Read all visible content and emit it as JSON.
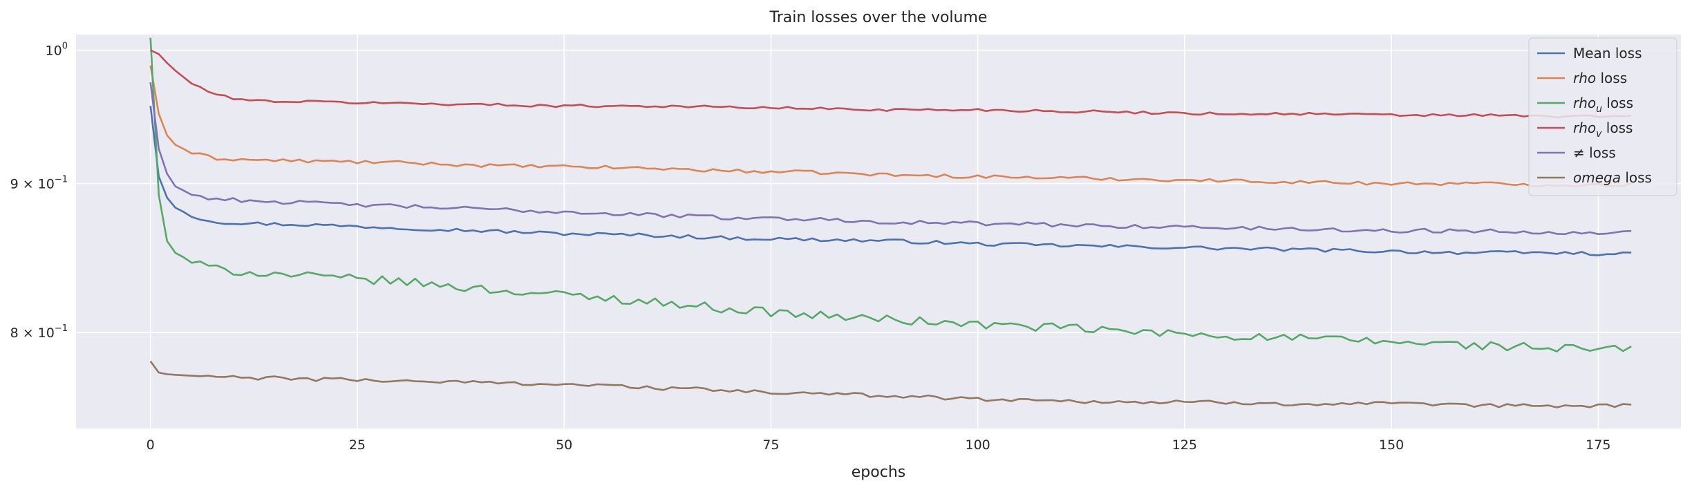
{
  "chart_data": {
    "type": "line",
    "title": "Train losses over the volume",
    "xlabel": "epochs",
    "ylabel": "",
    "y_scale": "log",
    "xlim": [
      -9,
      185
    ],
    "ylim": [
      0.7415,
      1.0125
    ],
    "x_ticks": [
      0,
      25,
      50,
      75,
      100,
      125,
      150,
      175
    ],
    "x_tick_labels": [
      "0",
      "25",
      "50",
      "75",
      "100",
      "125",
      "150",
      "175"
    ],
    "y_ticks": [
      1.0,
      0.9,
      0.8
    ],
    "y_tick_labels": [
      {
        "base": "10",
        "exp": "0"
      },
      {
        "base": "9 × 10",
        "exp": "−1"
      },
      {
        "base": "8 × 10",
        "exp": "−1"
      }
    ],
    "grid": true,
    "legend_position": "top-right",
    "background": "#eaeaf2",
    "series": [
      {
        "name": "Mean loss",
        "legend": {
          "italic": "",
          "sub": "",
          "rest": "Mean loss"
        },
        "color": "#4c72b0",
        "keypoints": [
          [
            0,
            0.957
          ],
          [
            1,
            0.905
          ],
          [
            2,
            0.89
          ],
          [
            3,
            0.883
          ],
          [
            5,
            0.877
          ],
          [
            8,
            0.873
          ],
          [
            12,
            0.872
          ],
          [
            20,
            0.871
          ],
          [
            30,
            0.869
          ],
          [
            40,
            0.867
          ],
          [
            50,
            0.865
          ],
          [
            60,
            0.864
          ],
          [
            70,
            0.862
          ],
          [
            80,
            0.861
          ],
          [
            90,
            0.86
          ],
          [
            100,
            0.858
          ],
          [
            110,
            0.857
          ],
          [
            120,
            0.856
          ],
          [
            130,
            0.855
          ],
          [
            140,
            0.854
          ],
          [
            150,
            0.853
          ],
          [
            160,
            0.852
          ],
          [
            170,
            0.852
          ],
          [
            179,
            0.851
          ]
        ],
        "noise": 0.0012
      },
      {
        "name": "rho loss",
        "legend": {
          "italic": "rho",
          "sub": "",
          "rest": " loss"
        },
        "color": "#dd8452",
        "keypoints": [
          [
            0,
            0.988
          ],
          [
            1,
            0.951
          ],
          [
            2,
            0.935
          ],
          [
            3,
            0.928
          ],
          [
            5,
            0.922
          ],
          [
            8,
            0.918
          ],
          [
            12,
            0.917
          ],
          [
            20,
            0.916
          ],
          [
            30,
            0.915
          ],
          [
            40,
            0.913
          ],
          [
            50,
            0.912
          ],
          [
            60,
            0.911
          ],
          [
            70,
            0.909
          ],
          [
            80,
            0.908
          ],
          [
            90,
            0.906
          ],
          [
            100,
            0.905
          ],
          [
            110,
            0.904
          ],
          [
            120,
            0.903
          ],
          [
            130,
            0.902
          ],
          [
            140,
            0.901
          ],
          [
            150,
            0.9
          ],
          [
            160,
            0.9
          ],
          [
            170,
            0.899
          ],
          [
            179,
            0.899
          ]
        ],
        "noise": 0.0012
      },
      {
        "name": "rho_u loss",
        "legend": {
          "italic": "rho",
          "sub": "u",
          "rest": " loss"
        },
        "color": "#55a868",
        "keypoints": [
          [
            0,
            1.01
          ],
          [
            1,
            0.892
          ],
          [
            2,
            0.86
          ],
          [
            3,
            0.852
          ],
          [
            5,
            0.846
          ],
          [
            8,
            0.841
          ],
          [
            12,
            0.839
          ],
          [
            20,
            0.836
          ],
          [
            30,
            0.833
          ],
          [
            40,
            0.828
          ],
          [
            50,
            0.824
          ],
          [
            60,
            0.82
          ],
          [
            70,
            0.815
          ],
          [
            80,
            0.811
          ],
          [
            90,
            0.808
          ],
          [
            100,
            0.805
          ],
          [
            110,
            0.803
          ],
          [
            120,
            0.8
          ],
          [
            130,
            0.798
          ],
          [
            140,
            0.796
          ],
          [
            150,
            0.794
          ],
          [
            160,
            0.792
          ],
          [
            170,
            0.79
          ],
          [
            179,
            0.789
          ]
        ],
        "noise": 0.0028
      },
      {
        "name": "rho_v loss",
        "legend": {
          "italic": "rho",
          "sub": "v",
          "rest": " loss"
        },
        "color": "#c44e52",
        "keypoints": [
          [
            0,
            1.0
          ],
          [
            1,
            0.997
          ],
          [
            2,
            0.99
          ],
          [
            3,
            0.984
          ],
          [
            5,
            0.974
          ],
          [
            8,
            0.965
          ],
          [
            12,
            0.961
          ],
          [
            20,
            0.96
          ],
          [
            30,
            0.959
          ],
          [
            40,
            0.958
          ],
          [
            50,
            0.957
          ],
          [
            60,
            0.957
          ],
          [
            70,
            0.956
          ],
          [
            80,
            0.955
          ],
          [
            90,
            0.954
          ],
          [
            100,
            0.954
          ],
          [
            110,
            0.953
          ],
          [
            120,
            0.952
          ],
          [
            130,
            0.951
          ],
          [
            140,
            0.951
          ],
          [
            150,
            0.95
          ],
          [
            160,
            0.95
          ],
          [
            170,
            0.949
          ],
          [
            179,
            0.949
          ]
        ],
        "noise": 0.001
      },
      {
        "name": "≠ loss",
        "legend": {
          "italic": "",
          "sub": "",
          "rest": "≠ loss"
        },
        "color": "#8172b3",
        "keypoints": [
          [
            0,
            0.975
          ],
          [
            1,
            0.925
          ],
          [
            2,
            0.907
          ],
          [
            3,
            0.898
          ],
          [
            5,
            0.892
          ],
          [
            8,
            0.889
          ],
          [
            12,
            0.888
          ],
          [
            20,
            0.886
          ],
          [
            30,
            0.884
          ],
          [
            40,
            0.882
          ],
          [
            50,
            0.88
          ],
          [
            60,
            0.878
          ],
          [
            70,
            0.876
          ],
          [
            80,
            0.875
          ],
          [
            90,
            0.873
          ],
          [
            100,
            0.872
          ],
          [
            110,
            0.871
          ],
          [
            120,
            0.87
          ],
          [
            130,
            0.869
          ],
          [
            140,
            0.868
          ],
          [
            150,
            0.867
          ],
          [
            160,
            0.867
          ],
          [
            170,
            0.866
          ],
          [
            179,
            0.866
          ]
        ],
        "noise": 0.0014
      },
      {
        "name": "omega loss",
        "legend": {
          "italic": "omega",
          "sub": "",
          "rest": " loss"
        },
        "color": "#937860",
        "keypoints": [
          [
            0,
            0.782
          ],
          [
            1,
            0.775
          ],
          [
            2,
            0.774
          ],
          [
            5,
            0.773
          ],
          [
            10,
            0.772
          ],
          [
            20,
            0.771
          ],
          [
            30,
            0.77
          ],
          [
            40,
            0.769
          ],
          [
            50,
            0.768
          ],
          [
            60,
            0.766
          ],
          [
            70,
            0.764
          ],
          [
            80,
            0.762
          ],
          [
            90,
            0.761
          ],
          [
            100,
            0.759
          ],
          [
            110,
            0.758
          ],
          [
            120,
            0.757
          ],
          [
            130,
            0.757
          ],
          [
            140,
            0.756
          ],
          [
            150,
            0.756
          ],
          [
            160,
            0.755
          ],
          [
            170,
            0.755
          ],
          [
            179,
            0.755
          ]
        ],
        "noise": 0.0012
      }
    ]
  }
}
